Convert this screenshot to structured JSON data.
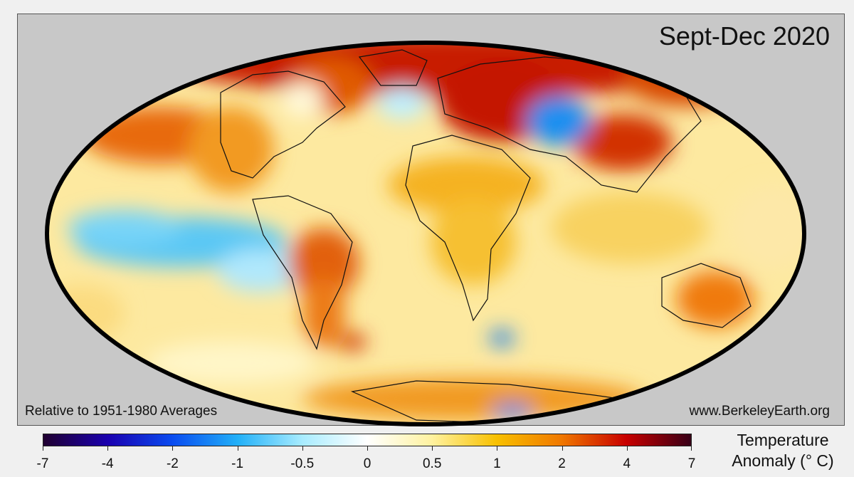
{
  "map": {
    "title": "Sept-Dec 2020",
    "footnote_left": "Relative to 1951-1980 Averages",
    "footnote_right": "www.BerkeleyEarth.org",
    "projection": "Mollweide (oval)",
    "background_color": "#c8c8c8",
    "border_color": "#000000"
  },
  "legend": {
    "title_line1": "Temperature",
    "title_line2": "Anomaly (° C)",
    "ticks": [
      {
        "label": "-7",
        "pos": 0.0
      },
      {
        "label": "-4",
        "pos": 0.1
      },
      {
        "label": "-2",
        "pos": 0.2
      },
      {
        "label": "-1",
        "pos": 0.3
      },
      {
        "label": "-0.5",
        "pos": 0.4
      },
      {
        "label": "0",
        "pos": 0.5
      },
      {
        "label": "0.5",
        "pos": 0.6
      },
      {
        "label": "1",
        "pos": 0.7
      },
      {
        "label": "2",
        "pos": 0.8
      },
      {
        "label": "4",
        "pos": 0.9
      },
      {
        "label": "7",
        "pos": 1.0
      }
    ],
    "gradient_stops": [
      {
        "pos": 0.0,
        "color": "#200030"
      },
      {
        "pos": 0.1,
        "color": "#1a00b0"
      },
      {
        "pos": 0.2,
        "color": "#0a4cf0"
      },
      {
        "pos": 0.3,
        "color": "#22b0f8"
      },
      {
        "pos": 0.4,
        "color": "#a8ecff"
      },
      {
        "pos": 0.5,
        "color": "#ffffff"
      },
      {
        "pos": 0.6,
        "color": "#fff2a0"
      },
      {
        "pos": 0.7,
        "color": "#f8c000"
      },
      {
        "pos": 0.8,
        "color": "#f07800"
      },
      {
        "pos": 0.9,
        "color": "#c80000"
      },
      {
        "pos": 1.0,
        "color": "#380018"
      }
    ]
  }
}
